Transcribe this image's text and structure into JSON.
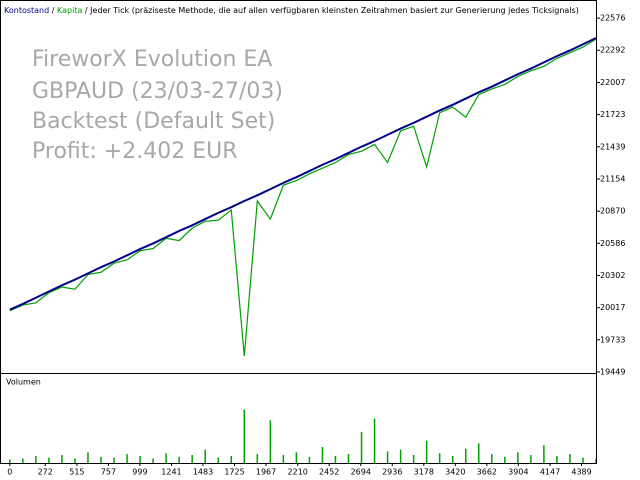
{
  "chart_data": {
    "type": "line",
    "annotations": [
      "FireworX Evolution EA",
      "GBPAUD (23/03-27/03)",
      "Backtest (Default Set)",
      "Profit: +2.402 EUR"
    ],
    "separator": "/",
    "subtitle": "Jeder Tick (präziseste Methode, die auf allen verfügbaren kleinsten Zeitrahmen basiert zur Generierung jedes Ticksignals)",
    "x": [
      0,
      100,
      200,
      300,
      400,
      500,
      600,
      700,
      800,
      900,
      1000,
      1100,
      1200,
      1300,
      1400,
      1500,
      1600,
      1700,
      1800,
      1900,
      2000,
      2100,
      2200,
      2300,
      2400,
      2500,
      2600,
      2700,
      2800,
      2900,
      3000,
      3100,
      3200,
      3300,
      3400,
      3500,
      3600,
      3700,
      3800,
      3900,
      4000,
      4100,
      4200,
      4300,
      4400,
      4500
    ],
    "series": [
      {
        "name": "Kontostand",
        "color": "#00008b",
        "values": [
          20000,
          20050,
          20105,
          20160,
          20215,
          20265,
          20320,
          20375,
          20425,
          20480,
          20535,
          20585,
          20640,
          20695,
          20745,
          20800,
          20855,
          20905,
          20960,
          21010,
          21065,
          21120,
          21170,
          21225,
          21280,
          21330,
          21385,
          21440,
          21490,
          21545,
          21600,
          21650,
          21705,
          21760,
          21810,
          21865,
          21920,
          21970,
          22025,
          22080,
          22130,
          22185,
          22240,
          22290,
          22345,
          22400
        ]
      },
      {
        "name": "Kapita",
        "color": "#00a000",
        "values": [
          19990,
          20040,
          20060,
          20150,
          20200,
          20180,
          20310,
          20330,
          20410,
          20440,
          20520,
          20540,
          20630,
          20610,
          20720,
          20780,
          20790,
          20880,
          19590,
          20960,
          20800,
          21100,
          21140,
          21200,
          21250,
          21300,
          21370,
          21400,
          21460,
          21300,
          21580,
          21620,
          21260,
          21740,
          21790,
          21700,
          21900,
          21950,
          21990,
          22060,
          22110,
          22150,
          22220,
          22270,
          22320,
          22390
        ]
      }
    ],
    "volume": {
      "label": "Volumen",
      "color": "#00a000",
      "ylim": [
        0,
        10
      ],
      "values": [
        0.4,
        0.5,
        0.8,
        0.6,
        0.9,
        0.5,
        1.2,
        0.7,
        0.6,
        1.0,
        0.8,
        0.5,
        1.1,
        0.7,
        0.9,
        1.5,
        0.6,
        0.8,
        6.0,
        1.0,
        4.8,
        0.9,
        1.2,
        0.7,
        1.8,
        0.8,
        1.0,
        3.5,
        5.0,
        1.3,
        1.5,
        0.9,
        2.5,
        1.1,
        0.8,
        1.6,
        2.2,
        1.0,
        0.7,
        1.2,
        0.9,
        2.0,
        0.8,
        1.0,
        0.6,
        0.5
      ]
    },
    "xlim": [
      -60,
      4500
    ],
    "xticks": [
      0,
      272,
      515,
      757,
      999,
      1241,
      1483,
      1725,
      1967,
      2210,
      2452,
      2694,
      2936,
      3178,
      3420,
      3662,
      3904,
      4147,
      4389
    ],
    "ylim": [
      19431,
      22736
    ],
    "yticks": [
      19449,
      19733,
      20017,
      20302,
      20586,
      20870,
      21154,
      21439,
      21723,
      22007,
      22292,
      22576
    ]
  }
}
